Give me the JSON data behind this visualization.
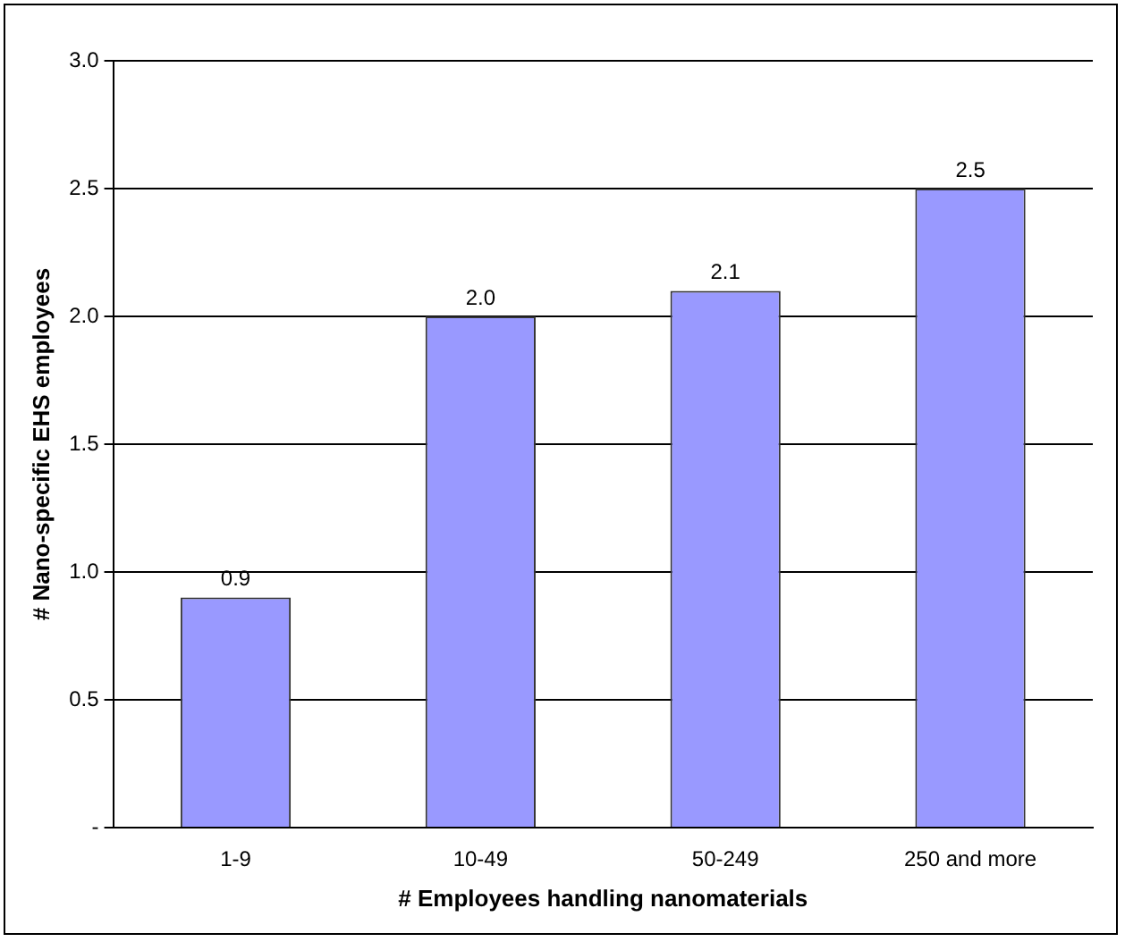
{
  "chart_data": {
    "type": "bar",
    "xlabel": "# Employees handling nanomaterials",
    "ylabel": "# Nano-specific EHS employees",
    "categories": [
      "1-9",
      "10-49",
      "50-249",
      "250 and more"
    ],
    "values": [
      0.9,
      2.0,
      2.1,
      2.5
    ],
    "value_labels": [
      "0.9",
      "2.0",
      "2.1",
      "2.5"
    ],
    "color": "#9999ff",
    "ylim": [
      0,
      3
    ],
    "yticks": [
      {
        "value": 0,
        "label": "-"
      },
      0.5,
      {
        "value": 1,
        "label": "1.0"
      },
      1.5,
      {
        "value": 2,
        "label": "2.0"
      },
      2.5,
      {
        "value": 3,
        "label": "3.0"
      }
    ],
    "grid": "y",
    "legend": false
  }
}
